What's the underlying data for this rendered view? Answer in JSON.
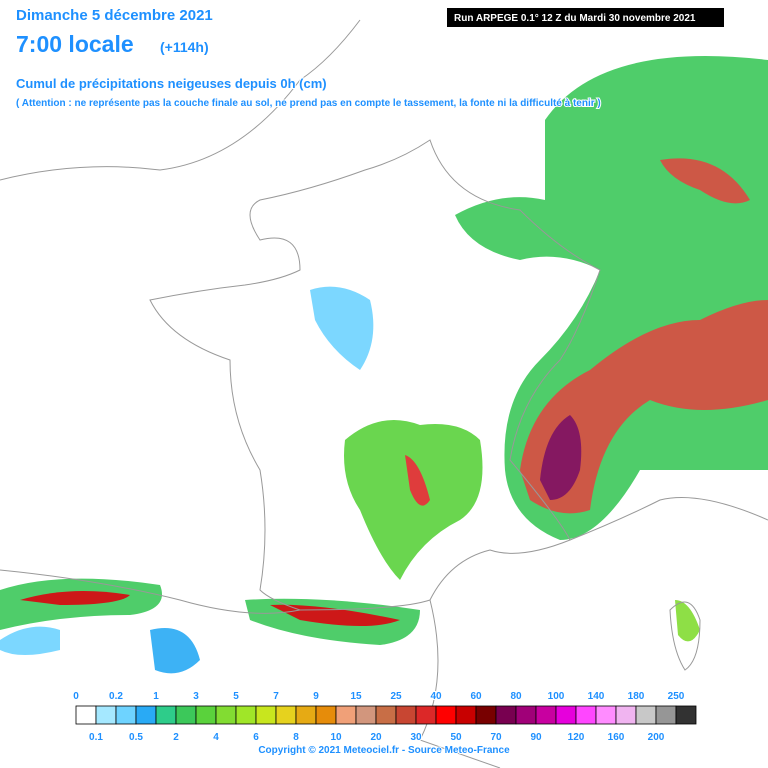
{
  "header": {
    "date": "Dimanche 5 décembre 2021",
    "time": "7:00 locale",
    "lead": "(+114h)",
    "run": "Run ARPEGE 0.1° 12 Z du Mardi 30 novembre 2021",
    "title": "Cumul de précipitations neigeuses depuis 0h (cm)",
    "note": "( Attention : ne représente pas la couche finale au sol, ne prend pas en compte le tassement, la fonte ni la difficulté à tenir )"
  },
  "legend": {
    "thresholds": [
      0,
      0.1,
      0.2,
      0.5,
      1,
      2,
      3,
      4,
      5,
      6,
      7,
      8,
      9,
      10,
      15,
      20,
      25,
      30,
      40,
      50,
      60,
      70,
      80,
      90,
      100,
      120,
      140,
      160,
      180,
      200,
      250
    ],
    "colors": [
      "#ffffff",
      "#a5e8ff",
      "#6ed3ff",
      "#29aaf5",
      "#2ecc8a",
      "#3cc85a",
      "#5ad23c",
      "#82dc32",
      "#a0e628",
      "#c8e61e",
      "#e6d21e",
      "#e6aa14",
      "#e68c0a",
      "#f0a078",
      "#d2967d",
      "#c86e46",
      "#c84632",
      "#dc2828",
      "#ff0000",
      "#c80000",
      "#780000",
      "#780050",
      "#a00078",
      "#c800a0",
      "#e600dc",
      "#ff46ff",
      "#ff8cff",
      "#f0b4f0",
      "#c8c8c8",
      "#969696",
      "#323232"
    ]
  },
  "footer": {
    "copyright": "Copyright © 2021 Meteociel.fr - Source Meteo-France"
  }
}
